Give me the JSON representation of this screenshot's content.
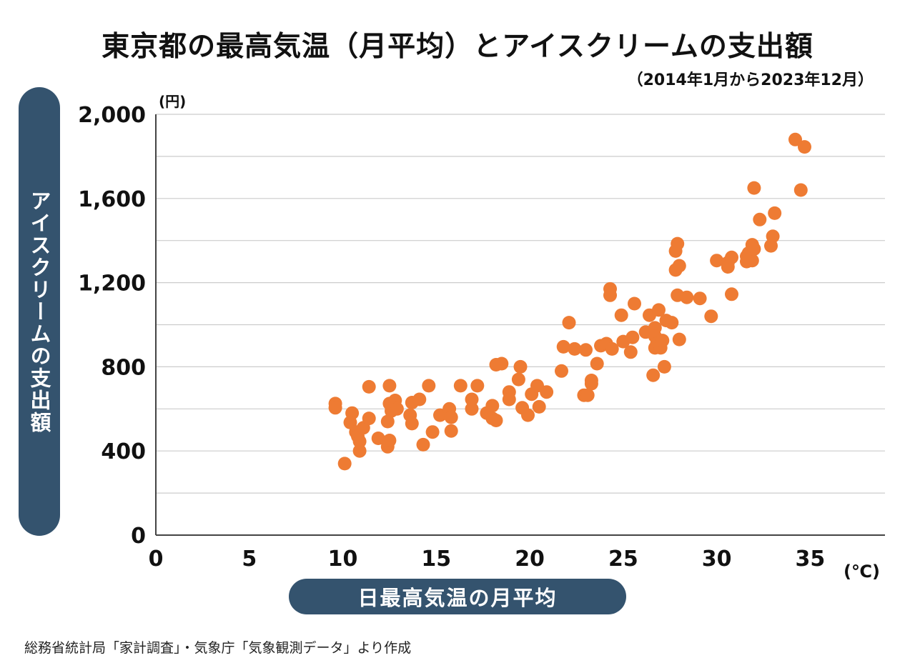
{
  "title": "東京都の最高気温（月平均）とアイスクリームの支出額",
  "subtitle": "（2014年1月から2023年12月）",
  "source": "総務省統計局「家計調査」・気象庁「気象観測データ」より作成",
  "colors": {
    "point": "#ee7b33",
    "pill": "#34536e",
    "grid": "#cccccc",
    "axis": "#444444"
  },
  "chart_data": {
    "type": "scatter",
    "title": "東京都の最高気温（月平均）とアイスクリームの支出額",
    "xlabel": "日最高気温の月平均",
    "ylabel": "アイスクリームの支出額",
    "x_unit": "(℃)",
    "y_unit": "(円)",
    "xlim": [
      0,
      39
    ],
    "ylim": [
      0,
      2000
    ],
    "x_ticks": [
      0,
      5,
      10,
      15,
      20,
      25,
      30,
      35
    ],
    "x_tick_labels": [
      "0",
      "5",
      "10",
      "15",
      "20",
      "25",
      "30",
      "35"
    ],
    "y_ticks": [
      0,
      400,
      800,
      1200,
      1600,
      2000
    ],
    "y_tick_labels": [
      "0",
      "400",
      "800",
      "1,200",
      "1,600",
      "2,000"
    ],
    "grid": "horizontal",
    "points": [
      [
        9.6,
        625
      ],
      [
        9.6,
        605
      ],
      [
        10.1,
        340
      ],
      [
        10.5,
        580
      ],
      [
        10.4,
        535
      ],
      [
        10.7,
        490
      ],
      [
        10.8,
        470
      ],
      [
        10.9,
        445
      ],
      [
        10.9,
        400
      ],
      [
        11.1,
        510
      ],
      [
        11.4,
        555
      ],
      [
        11.4,
        705
      ],
      [
        11.9,
        460
      ],
      [
        12.4,
        540
      ],
      [
        12.4,
        420
      ],
      [
        12.5,
        625
      ],
      [
        12.5,
        450
      ],
      [
        12.5,
        710
      ],
      [
        12.6,
        590
      ],
      [
        12.8,
        640
      ],
      [
        12.9,
        600
      ],
      [
        13.6,
        570
      ],
      [
        13.7,
        530
      ],
      [
        13.7,
        630
      ],
      [
        14.1,
        645
      ],
      [
        14.3,
        430
      ],
      [
        14.6,
        710
      ],
      [
        14.8,
        490
      ],
      [
        15.2,
        570
      ],
      [
        15.7,
        600
      ],
      [
        15.8,
        495
      ],
      [
        15.8,
        560
      ],
      [
        16.3,
        710
      ],
      [
        16.9,
        600
      ],
      [
        16.9,
        645
      ],
      [
        17.2,
        710
      ],
      [
        17.7,
        580
      ],
      [
        18.0,
        615
      ],
      [
        18.0,
        555
      ],
      [
        18.2,
        545
      ],
      [
        18.2,
        810
      ],
      [
        18.5,
        815
      ],
      [
        18.9,
        680
      ],
      [
        18.9,
        645
      ],
      [
        19.4,
        740
      ],
      [
        19.5,
        800
      ],
      [
        19.6,
        605
      ],
      [
        19.9,
        570
      ],
      [
        20.1,
        670
      ],
      [
        20.4,
        710
      ],
      [
        20.5,
        610
      ],
      [
        20.9,
        680
      ],
      [
        21.7,
        780
      ],
      [
        21.8,
        895
      ],
      [
        22.1,
        1010
      ],
      [
        22.4,
        885
      ],
      [
        22.9,
        665
      ],
      [
        23.1,
        665
      ],
      [
        23.0,
        880
      ],
      [
        23.3,
        720
      ],
      [
        23.3,
        735
      ],
      [
        23.6,
        815
      ],
      [
        23.8,
        900
      ],
      [
        24.1,
        910
      ],
      [
        24.3,
        1170
      ],
      [
        24.3,
        1140
      ],
      [
        24.4,
        885
      ],
      [
        24.9,
        1045
      ],
      [
        25.0,
        920
      ],
      [
        25.4,
        870
      ],
      [
        25.5,
        940
      ],
      [
        25.6,
        1100
      ],
      [
        26.2,
        965
      ],
      [
        26.4,
        1045
      ],
      [
        26.6,
        760
      ],
      [
        26.7,
        985
      ],
      [
        26.7,
        945
      ],
      [
        26.7,
        890
      ],
      [
        26.8,
        910
      ],
      [
        26.9,
        1070
      ],
      [
        27.0,
        890
      ],
      [
        27.1,
        925
      ],
      [
        27.2,
        800
      ],
      [
        27.3,
        1020
      ],
      [
        27.6,
        1010
      ],
      [
        27.8,
        1260
      ],
      [
        27.8,
        1350
      ],
      [
        27.9,
        1140
      ],
      [
        27.9,
        1385
      ],
      [
        28.0,
        1280
      ],
      [
        28.0,
        930
      ],
      [
        28.4,
        1130
      ],
      [
        29.1,
        1125
      ],
      [
        29.7,
        1040
      ],
      [
        30.0,
        1305
      ],
      [
        30.6,
        1295
      ],
      [
        30.6,
        1275
      ],
      [
        30.8,
        1320
      ],
      [
        30.8,
        1145
      ],
      [
        31.6,
        1300
      ],
      [
        31.6,
        1325
      ],
      [
        31.7,
        1340
      ],
      [
        31.9,
        1305
      ],
      [
        31.9,
        1380
      ],
      [
        32.0,
        1650
      ],
      [
        32.0,
        1360
      ],
      [
        32.3,
        1500
      ],
      [
        32.9,
        1375
      ],
      [
        33.0,
        1420
      ],
      [
        33.1,
        1530
      ],
      [
        34.2,
        1880
      ],
      [
        34.5,
        1640
      ],
      [
        34.7,
        1845
      ]
    ]
  }
}
